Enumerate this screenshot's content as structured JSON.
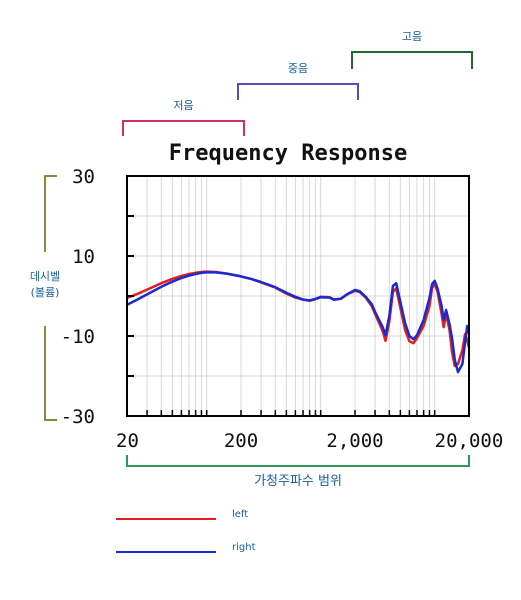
{
  "chart_data": {
    "type": "line",
    "title": "Frequency Response",
    "xlabel": "가청주파수 범위",
    "ylabel_lines": [
      "데시벨",
      "(볼륨)"
    ],
    "xscale": "log",
    "xlim": [
      20,
      20000
    ],
    "ylim": [
      -30,
      30
    ],
    "xticks": [
      20,
      200,
      2000,
      20000
    ],
    "xtick_labels": [
      "20",
      "200",
      "2,000",
      "20,000"
    ],
    "yticks": [
      30,
      10,
      -10,
      -30
    ],
    "ytick_labels": [
      "30",
      "10",
      "-10",
      "-30"
    ],
    "grid": true,
    "legend_position": "bottom-left",
    "bands": [
      {
        "label": "저음",
        "from": 20,
        "to": 200,
        "color": "#d0306a"
      },
      {
        "label": "중음",
        "from": 200,
        "to": 2000,
        "color": "#5050b8"
      },
      {
        "label": "고음",
        "from": 2000,
        "to": 20000,
        "color": "#1f6a2a"
      }
    ],
    "series": [
      {
        "name": "left",
        "color": "#e02020",
        "points": [
          [
            20,
            -0.5
          ],
          [
            25,
            0.6
          ],
          [
            30,
            1.6
          ],
          [
            40,
            3.2
          ],
          [
            50,
            4.3
          ],
          [
            60,
            5.0
          ],
          [
            70,
            5.5
          ],
          [
            80,
            5.8
          ],
          [
            90,
            6.0
          ],
          [
            100,
            6.1
          ],
          [
            120,
            6.0
          ],
          [
            150,
            5.6
          ],
          [
            200,
            4.9
          ],
          [
            250,
            4.2
          ],
          [
            300,
            3.4
          ],
          [
            400,
            2.1
          ],
          [
            500,
            0.6
          ],
          [
            600,
            -0.4
          ],
          [
            700,
            -0.9
          ],
          [
            800,
            -1.2
          ],
          [
            900,
            -0.8
          ],
          [
            1000,
            -0.2
          ],
          [
            1200,
            -0.3
          ],
          [
            1300,
            -0.9
          ],
          [
            1500,
            -0.7
          ],
          [
            1700,
            0.4
          ],
          [
            2000,
            1.3
          ],
          [
            2200,
            1.0
          ],
          [
            2500,
            -0.5
          ],
          [
            2800,
            -2.5
          ],
          [
            3000,
            -4.5
          ],
          [
            3500,
            -8.8
          ],
          [
            3700,
            -11.2
          ],
          [
            4000,
            -6.5
          ],
          [
            4300,
            1.0
          ],
          [
            4600,
            1.9
          ],
          [
            5000,
            -3.0
          ],
          [
            5500,
            -8.5
          ],
          [
            6000,
            -11.3
          ],
          [
            6500,
            -11.8
          ],
          [
            7000,
            -10.5
          ],
          [
            8000,
            -7.5
          ],
          [
            9000,
            -2.5
          ],
          [
            9500,
            2.0
          ],
          [
            10000,
            3.0
          ],
          [
            10600,
            1.0
          ],
          [
            11500,
            -4.5
          ],
          [
            12000,
            -7.8
          ],
          [
            12600,
            -4.5
          ],
          [
            13500,
            -8.5
          ],
          [
            14200,
            -14.0
          ],
          [
            15000,
            -17.5
          ],
          [
            16000,
            -17.0
          ],
          [
            17500,
            -13.5
          ],
          [
            18500,
            -9.5
          ],
          [
            19300,
            -11.0
          ],
          [
            20000,
            -13.0
          ]
        ]
      },
      {
        "name": "right",
        "color": "#1a2ad0",
        "points": [
          [
            20,
            -2.2
          ],
          [
            25,
            -0.8
          ],
          [
            30,
            0.4
          ],
          [
            40,
            2.3
          ],
          [
            50,
            3.6
          ],
          [
            60,
            4.5
          ],
          [
            70,
            5.1
          ],
          [
            80,
            5.5
          ],
          [
            90,
            5.8
          ],
          [
            100,
            5.9
          ],
          [
            120,
            5.9
          ],
          [
            150,
            5.6
          ],
          [
            200,
            4.9
          ],
          [
            250,
            4.2
          ],
          [
            300,
            3.5
          ],
          [
            400,
            2.2
          ],
          [
            500,
            0.8
          ],
          [
            600,
            -0.2
          ],
          [
            700,
            -0.9
          ],
          [
            800,
            -1.1
          ],
          [
            900,
            -0.7
          ],
          [
            1000,
            -0.3
          ],
          [
            1200,
            -0.4
          ],
          [
            1300,
            -0.9
          ],
          [
            1500,
            -0.7
          ],
          [
            1700,
            0.4
          ],
          [
            2000,
            1.5
          ],
          [
            2200,
            1.2
          ],
          [
            2500,
            -0.3
          ],
          [
            2800,
            -2.0
          ],
          [
            3000,
            -4.0
          ],
          [
            3500,
            -7.8
          ],
          [
            3700,
            -9.8
          ],
          [
            4000,
            -5.0
          ],
          [
            4300,
            2.5
          ],
          [
            4600,
            3.2
          ],
          [
            5000,
            -1.5
          ],
          [
            5500,
            -6.8
          ],
          [
            6000,
            -10.0
          ],
          [
            6500,
            -10.8
          ],
          [
            7000,
            -9.8
          ],
          [
            8000,
            -6.0
          ],
          [
            9000,
            -0.5
          ],
          [
            9500,
            3.0
          ],
          [
            10000,
            3.8
          ],
          [
            10600,
            1.8
          ],
          [
            11500,
            -2.5
          ],
          [
            12000,
            -6.0
          ],
          [
            12600,
            -3.5
          ],
          [
            13500,
            -7.0
          ],
          [
            14200,
            -10.5
          ],
          [
            15000,
            -16.0
          ],
          [
            16000,
            -19.0
          ],
          [
            17500,
            -17.0
          ],
          [
            18500,
            -11.5
          ],
          [
            19300,
            -7.5
          ],
          [
            20000,
            -9.5
          ]
        ]
      }
    ]
  }
}
